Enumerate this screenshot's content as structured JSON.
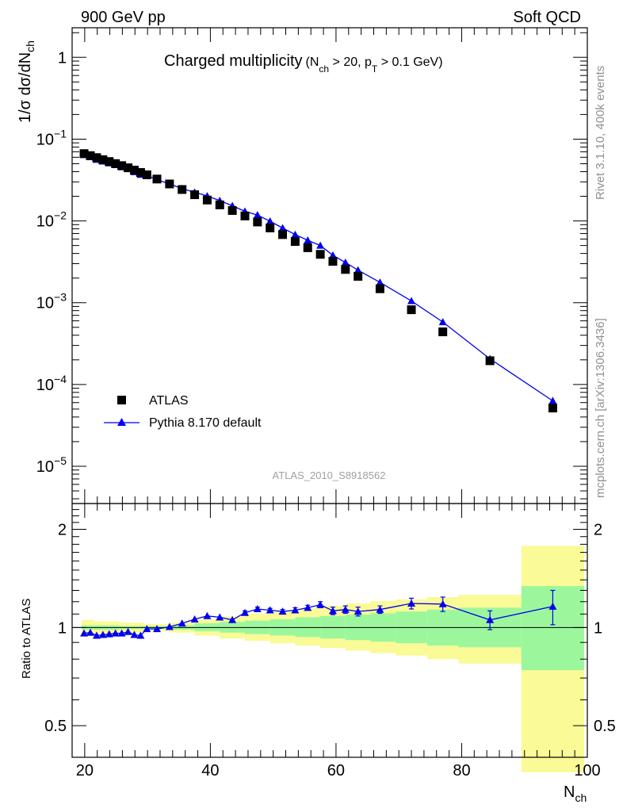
{
  "header": {
    "left": "900 GeV pp",
    "right": "Soft QCD"
  },
  "sidebar": {
    "rivet": "Rivet 3.1.10,  400k events",
    "mcplots": "mcplots.cern.ch [arXiv:1306.3436]"
  },
  "colors": {
    "mc": "#0000ee",
    "data": "#000000",
    "band_inner": "#9cf79c",
    "band_outer": "#fafa96"
  },
  "chart_data": [
    {
      "type": "scatter",
      "title": "Charged multiplicity",
      "title_cuts": {
        "a": "(N",
        "a_sub": "ch",
        "b": " > 20, p",
        "b_sub": "T",
        "c": " > 0.1 GeV)"
      },
      "ylabel": {
        "main": "1/σ dσ/dN",
        "sub": "ch"
      },
      "yscale": "log",
      "ylim": [
        3.5e-06,
        2.3
      ],
      "xlim": [
        18,
        100
      ],
      "yticks": [
        {
          "value": 1,
          "base": "1",
          "exp": ""
        },
        {
          "value": 0.1,
          "base": "10",
          "exp": "−1"
        },
        {
          "value": 0.01,
          "base": "10",
          "exp": "−2"
        },
        {
          "value": 0.001,
          "base": "10",
          "exp": "−3"
        },
        {
          "value": 0.0001,
          "base": "10",
          "exp": "−4"
        },
        {
          "value": 1e-05,
          "base": "10",
          "exp": "−5"
        }
      ],
      "watermark": "ATLAS_2010_S8918562",
      "legend": {
        "placement": "bottom-left",
        "data_label": "ATLAS",
        "mc_label": "Pythia 8.170 default"
      },
      "x": [
        19.9,
        20.9,
        21.9,
        22.9,
        23.9,
        24.9,
        25.9,
        26.9,
        27.9,
        28.9,
        29.9,
        31.5,
        33.5,
        35.5,
        37.5,
        39.5,
        41.5,
        43.5,
        45.5,
        47.5,
        49.5,
        51.5,
        53.5,
        55.5,
        57.5,
        59.5,
        61.5,
        63.5,
        67.0,
        72.0,
        77.0,
        84.5,
        94.5
      ],
      "series": [
        {
          "name": "ATLAS",
          "values": [
            0.0665,
            0.0628,
            0.0594,
            0.0561,
            0.0532,
            0.0502,
            0.0474,
            0.0446,
            0.0418,
            0.0391,
            0.0366,
            0.0325,
            0.0283,
            0.0242,
            0.0209,
            0.018,
            0.0157,
            0.0134,
            0.0115,
            0.0097,
            0.0082,
            0.0068,
            0.0056,
            0.0047,
            0.0039,
            0.0032,
            0.00255,
            0.0021,
            0.00148,
            0.00082,
            0.00044,
            0.000195,
            5.15e-05
          ]
        },
        {
          "name": "Pythia 8.170 default",
          "values": [
            0.064,
            0.0605,
            0.056,
            0.0535,
            0.0508,
            0.0483,
            0.0455,
            0.0433,
            0.0396,
            0.0368,
            0.0361,
            0.032,
            0.0283,
            0.0248,
            0.0224,
            0.0202,
            0.0177,
            0.0153,
            0.0131,
            0.0118,
            0.0099,
            0.0082,
            0.0068,
            0.0058,
            0.005,
            0.0038,
            0.0031,
            0.0025,
            0.00177,
            0.00105,
            0.00058,
            0.000206,
            6.3e-05
          ],
          "errors": [
            0,
            0,
            0,
            0,
            0,
            0,
            0,
            0,
            0,
            0,
            0,
            0,
            0,
            0,
            0,
            0,
            0,
            0,
            0,
            0,
            0,
            0,
            0,
            0,
            0,
            0,
            0,
            0,
            0,
            0,
            0,
            1.4e-05,
            7e-06
          ]
        }
      ]
    },
    {
      "type": "scatter",
      "ylabel": "Ratio to ATLAS",
      "xlabel": {
        "main": "N",
        "sub": "ch"
      },
      "yscale": "log",
      "ylim": [
        0.4,
        2.4
      ],
      "xlim": [
        18,
        100
      ],
      "yticks": [
        {
          "value": 2,
          "label": "2"
        },
        {
          "value": 1,
          "label": "1"
        },
        {
          "value": 0.5,
          "label": "0.5"
        }
      ],
      "xticks": [
        {
          "value": 20,
          "label": "20"
        },
        {
          "value": 40,
          "label": "40"
        },
        {
          "value": 60,
          "label": "60"
        },
        {
          "value": 80,
          "label": "80"
        },
        {
          "value": 100,
          "label": "100"
        }
      ],
      "bands": [
        {
          "x0": 19.5,
          "x1": 21.5,
          "inner": [
            0.985,
            1.015
          ],
          "outer": [
            0.945,
            1.055
          ]
        },
        {
          "x0": 21.5,
          "x1": 25.5,
          "inner": [
            0.985,
            1.015
          ],
          "outer": [
            0.955,
            1.045
          ]
        },
        {
          "x0": 25.5,
          "x1": 29.5,
          "inner": [
            0.99,
            1.01
          ],
          "outer": [
            0.965,
            1.035
          ]
        },
        {
          "x0": 29.5,
          "x1": 33.5,
          "inner": [
            0.99,
            1.01
          ],
          "outer": [
            0.975,
            1.025
          ]
        },
        {
          "x0": 33.5,
          "x1": 37.5,
          "inner": [
            0.985,
            1.015
          ],
          "outer": [
            0.965,
            1.035
          ]
        },
        {
          "x0": 37.5,
          "x1": 41.5,
          "inner": [
            0.975,
            1.03
          ],
          "outer": [
            0.945,
            1.06
          ]
        },
        {
          "x0": 41.5,
          "x1": 45.5,
          "inner": [
            0.965,
            1.04
          ],
          "outer": [
            0.925,
            1.08
          ]
        },
        {
          "x0": 45.5,
          "x1": 49.5,
          "inner": [
            0.955,
            1.05
          ],
          "outer": [
            0.91,
            1.105
          ]
        },
        {
          "x0": 49.5,
          "x1": 53.5,
          "inner": [
            0.945,
            1.06
          ],
          "outer": [
            0.895,
            1.125
          ]
        },
        {
          "x0": 53.5,
          "x1": 57.5,
          "inner": [
            0.935,
            1.075
          ],
          "outer": [
            0.88,
            1.145
          ]
        },
        {
          "x0": 57.5,
          "x1": 61.5,
          "inner": [
            0.925,
            1.085
          ],
          "outer": [
            0.865,
            1.165
          ]
        },
        {
          "x0": 61.5,
          "x1": 65.5,
          "inner": [
            0.915,
            1.095
          ],
          "outer": [
            0.85,
            1.185
          ]
        },
        {
          "x0": 65.5,
          "x1": 69.5,
          "inner": [
            0.905,
            1.105
          ],
          "outer": [
            0.835,
            1.205
          ]
        },
        {
          "x0": 69.5,
          "x1": 74.5,
          "inner": [
            0.895,
            1.12
          ],
          "outer": [
            0.82,
            1.22
          ]
        },
        {
          "x0": 74.5,
          "x1": 79.5,
          "inner": [
            0.88,
            1.135
          ],
          "outer": [
            0.8,
            1.24
          ]
        },
        {
          "x0": 79.5,
          "x1": 89.5,
          "inner": [
            0.87,
            1.15
          ],
          "outer": [
            0.775,
            1.26
          ]
        },
        {
          "x0": 89.5,
          "x1": 99.5,
          "inner": [
            0.74,
            1.34
          ],
          "outer": [
            0.36,
            1.78
          ]
        }
      ],
      "series": [
        {
          "name": "Pythia 8.170 default / ATLAS",
          "values": [
            0.96,
            0.965,
            0.945,
            0.95,
            0.955,
            0.96,
            0.96,
            0.97,
            0.95,
            0.945,
            0.99,
            0.99,
            1.005,
            1.03,
            1.06,
            1.085,
            1.075,
            1.055,
            1.11,
            1.14,
            1.13,
            1.12,
            1.13,
            1.15,
            1.175,
            1.125,
            1.135,
            1.12,
            1.135,
            1.185,
            1.18,
            1.055,
            1.16
          ],
          "errors": [
            0.01,
            0.01,
            0.01,
            0.01,
            0.01,
            0.01,
            0.01,
            0.01,
            0.01,
            0.01,
            0.01,
            0.01,
            0.01,
            0.01,
            0.01,
            0.01,
            0.01,
            0.01,
            0.015,
            0.015,
            0.015,
            0.015,
            0.02,
            0.02,
            0.025,
            0.03,
            0.03,
            0.035,
            0.03,
            0.045,
            0.06,
            0.07,
            0.14
          ]
        }
      ]
    }
  ]
}
